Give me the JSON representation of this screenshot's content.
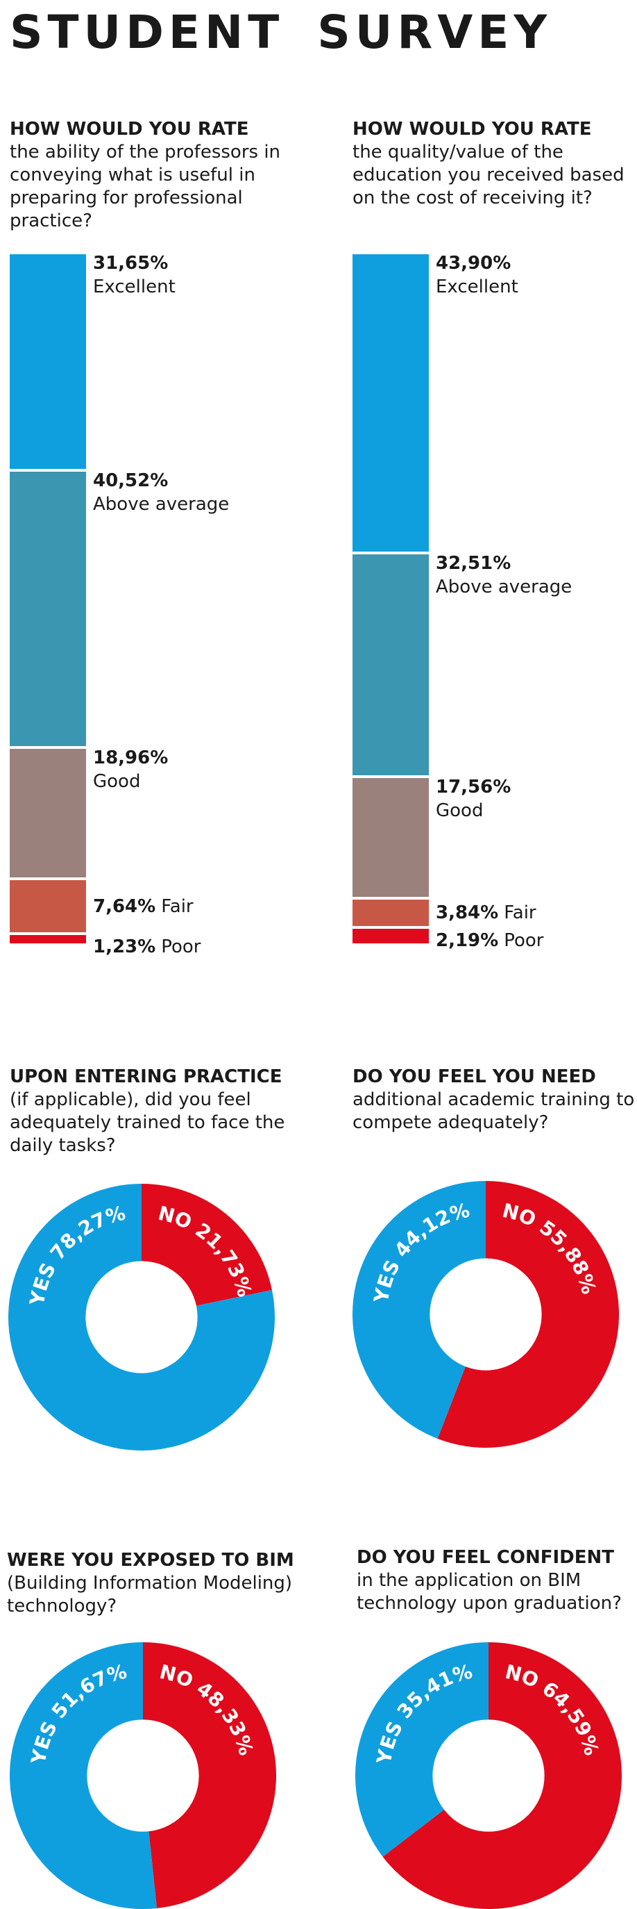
{
  "title": "STUDENT   SURVEY",
  "colors": {
    "excellent": "#109fde",
    "above_average": "#3a96b1",
    "good": "#9b817b",
    "fair": "#c85846",
    "poor": "#df0a1b",
    "yes": "#109fde",
    "no": "#df0a1b"
  },
  "chart_data": [
    {
      "type": "bar",
      "stacked": true,
      "question_head": "HOW WOULD YOU RATE",
      "question_text": "the ability of the professors in conveying what is useful in preparing for professional practice?",
      "categories": [
        "Excellent",
        "Above average",
        "Good",
        "Fair",
        "Poor"
      ],
      "values": [
        31.65,
        40.52,
        18.96,
        7.64,
        1.23
      ],
      "labels": [
        "31,65%",
        "40,52%",
        "18,96%",
        "7,64%",
        "1,23%"
      ]
    },
    {
      "type": "bar",
      "stacked": true,
      "question_head": "HOW WOULD YOU RATE",
      "question_text": "the quality/value of the education you received based on the cost of receiving it?",
      "categories": [
        "Excellent",
        "Above average",
        "Good",
        "Fair",
        "Poor"
      ],
      "values": [
        43.9,
        32.51,
        17.56,
        3.84,
        2.19
      ],
      "labels": [
        "43,90%",
        "32,51%",
        "17,56%",
        "3,84%",
        "2,19%"
      ]
    },
    {
      "type": "pie",
      "donut": true,
      "question_head": "UPON ENTERING PRACTICE",
      "question_text": "(if applicable), did you feel adequately trained to face the daily tasks?",
      "categories": [
        "YES",
        "NO"
      ],
      "values": [
        78.27,
        21.73
      ],
      "labels": [
        "YES 78,27%",
        "NO 21,73%"
      ]
    },
    {
      "type": "pie",
      "donut": true,
      "question_head": "DO YOU FEEL YOU NEED",
      "question_text": "additional academic training to compete adequately?",
      "categories": [
        "YES",
        "NO"
      ],
      "values": [
        44.12,
        55.88
      ],
      "labels": [
        "YES 44,12%",
        "NO 55,88%"
      ]
    },
    {
      "type": "pie",
      "donut": true,
      "question_head": "WERE YOU EXPOSED TO BIM",
      "question_text": "(Building Information Modeling) technology?",
      "categories": [
        "YES",
        "NO"
      ],
      "values": [
        51.67,
        48.33
      ],
      "labels": [
        "YES 51,67%",
        "NO 48,33%"
      ]
    },
    {
      "type": "pie",
      "donut": true,
      "question_head": "DO YOU FEEL CONFIDENT",
      "question_text": "in the application on BIM technology upon graduation?",
      "categories": [
        "YES",
        "NO"
      ],
      "values": [
        35.41,
        64.59
      ],
      "labels": [
        "YES 35,41%",
        "NO 64,59%"
      ]
    }
  ]
}
